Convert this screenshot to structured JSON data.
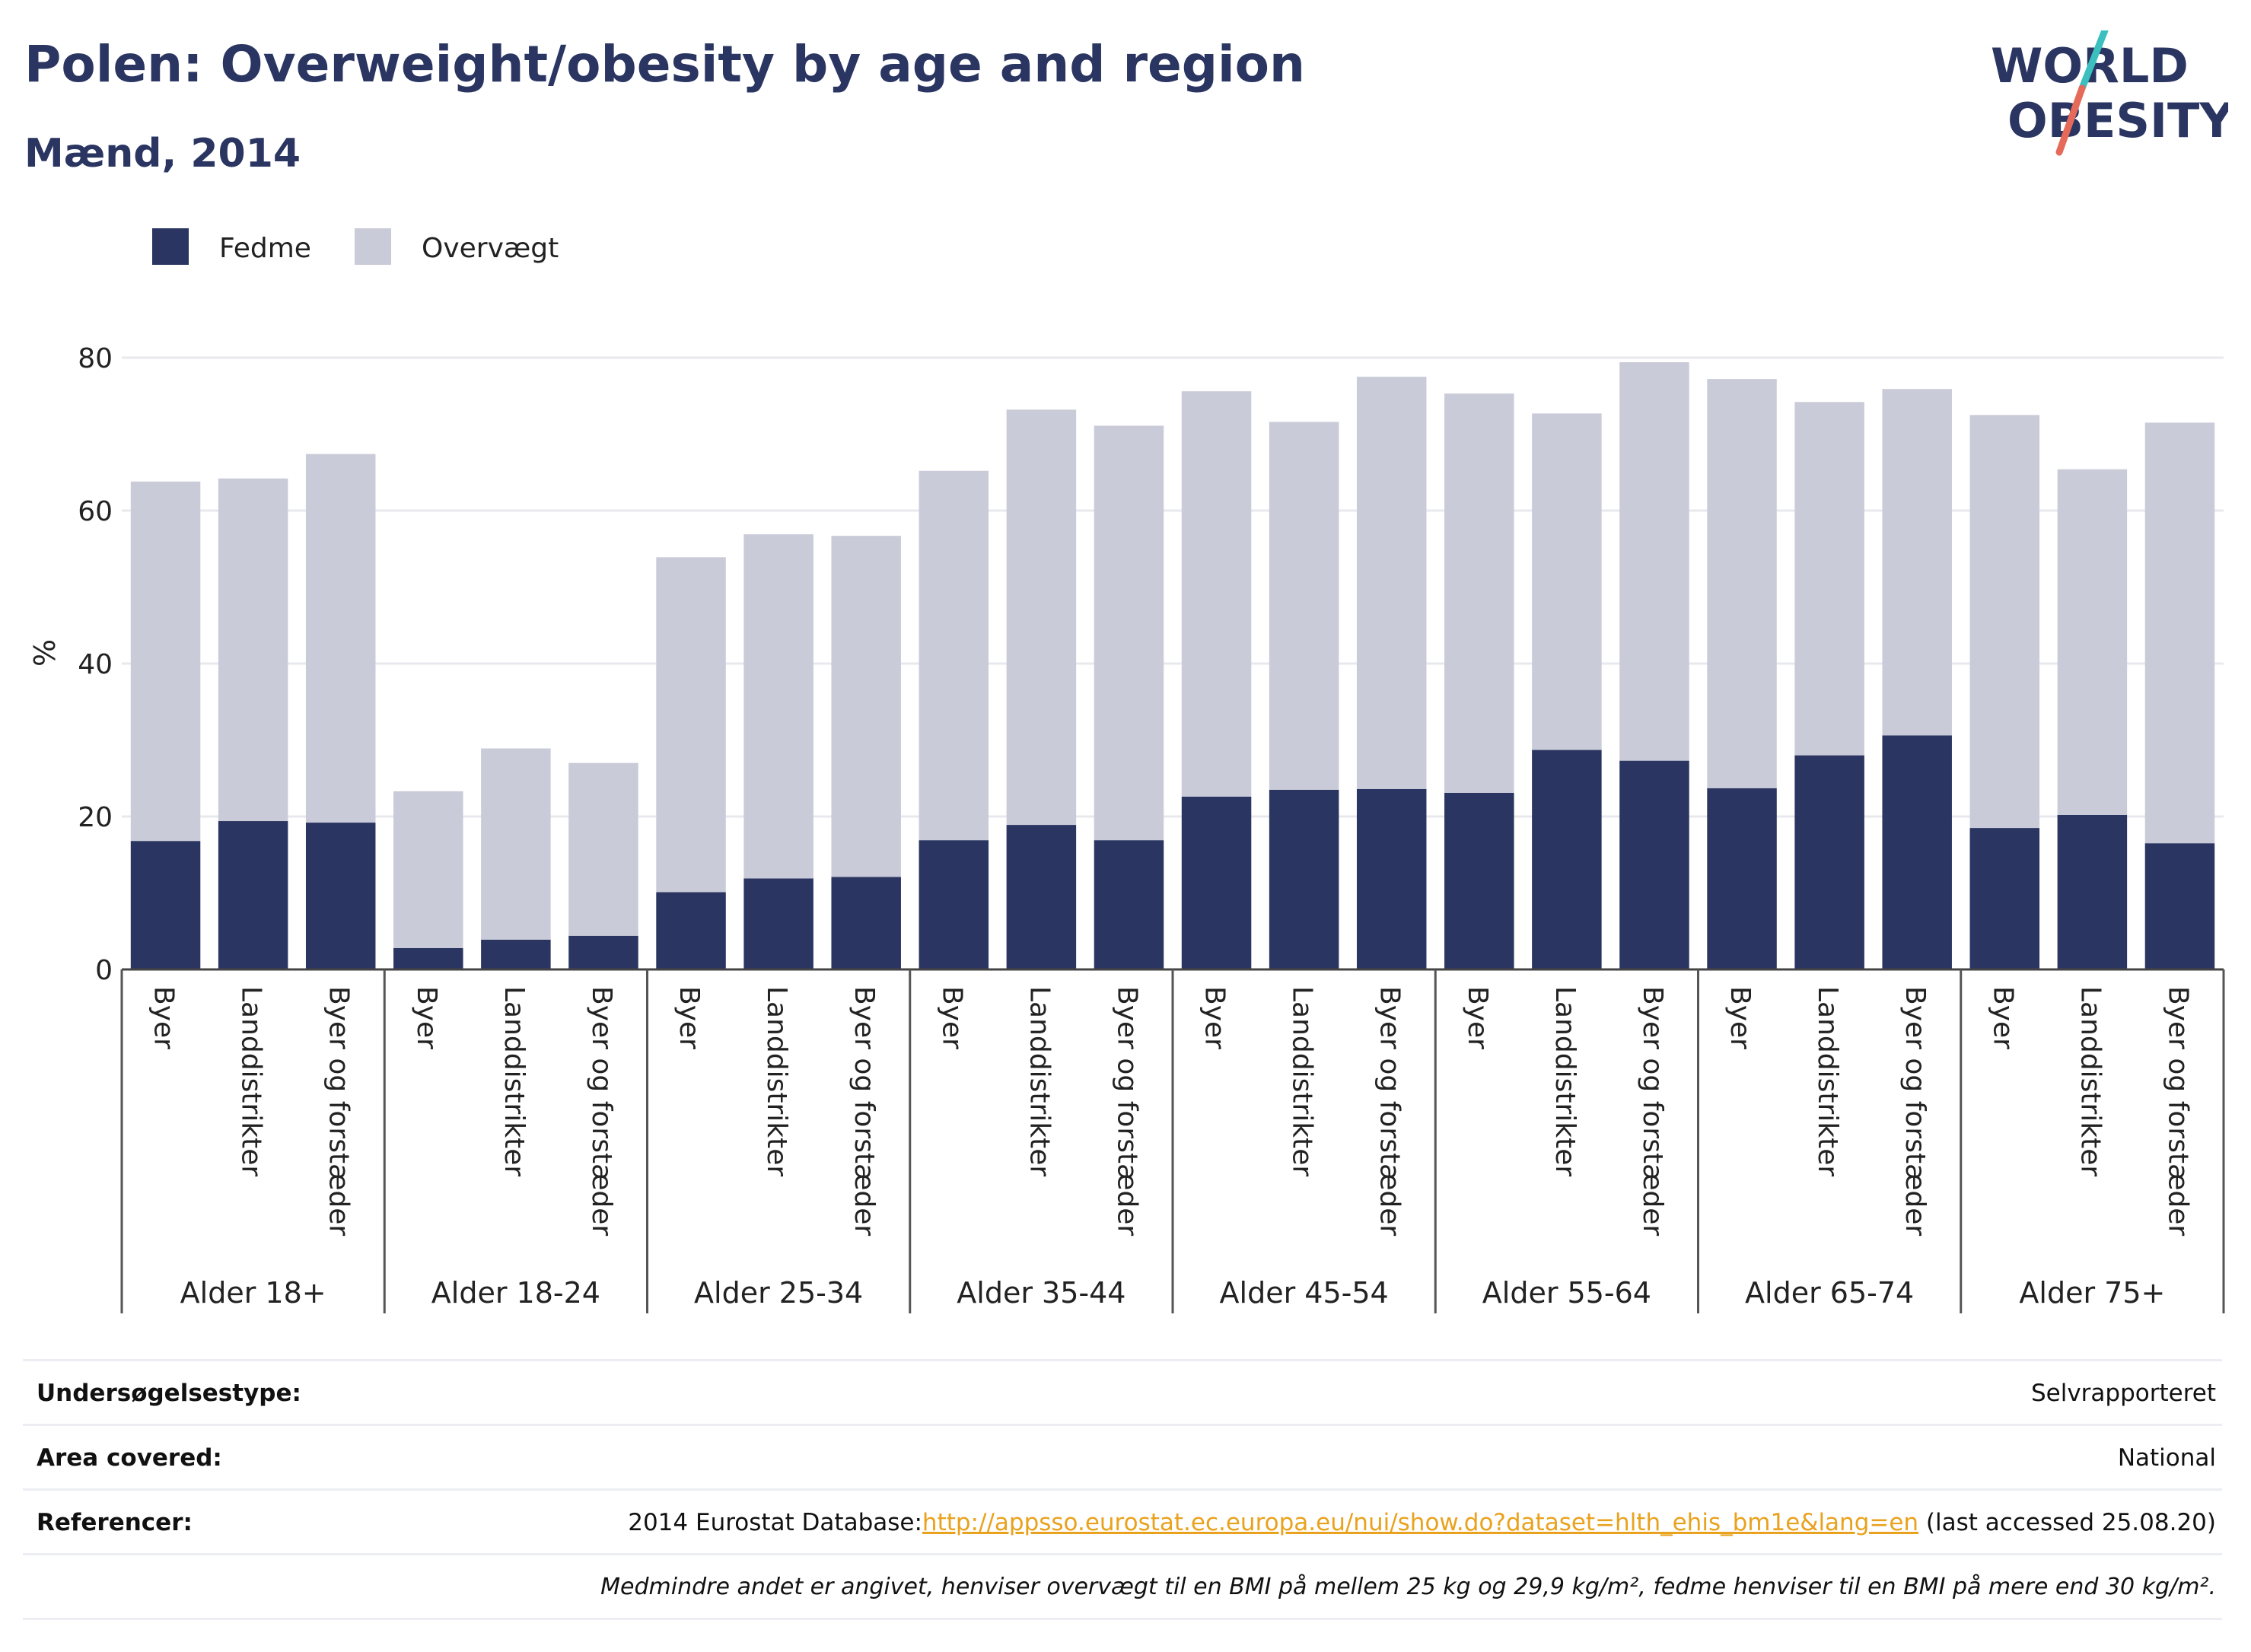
{
  "header": {
    "title": "Polen: Overweight/obesity by age and region",
    "subtitle": "Mænd, 2014"
  },
  "logo": {
    "line1": "WORLD",
    "line2": "OBESITY"
  },
  "colors": {
    "fedme": "#2a3561",
    "overvaegt": "#c9cbd8",
    "accent_teal": "#3bbfbf",
    "accent_coral": "#e66a5a",
    "link": "#e9a21d"
  },
  "chart_data": {
    "type": "bar",
    "stacked": true,
    "ylabel": "%",
    "ylim": [
      0,
      80
    ],
    "yticks": [
      0,
      20,
      40,
      60,
      80
    ],
    "grid": true,
    "legend_position": "top-left",
    "groups": [
      "Alder 18+",
      "Alder 18-24",
      "Alder 25-34",
      "Alder 35-44",
      "Alder 45-54",
      "Alder 55-64",
      "Alder 65-74",
      "Alder 75+"
    ],
    "subcategories": [
      "Byer",
      "Landdistrikter",
      "Byer og forstæder"
    ],
    "series": [
      {
        "name": "Fedme",
        "values": [
          16.8,
          19.4,
          19.2,
          2.8,
          3.9,
          4.4,
          10.1,
          11.9,
          12.1,
          16.9,
          18.9,
          16.9,
          22.6,
          23.5,
          23.6,
          23.1,
          28.7,
          27.3,
          23.7,
          28.0,
          30.6,
          18.5,
          20.2,
          16.5
        ]
      },
      {
        "name": "Overvægt",
        "values": [
          47.0,
          44.8,
          48.2,
          20.5,
          25.0,
          22.6,
          43.8,
          45.0,
          44.6,
          48.3,
          54.3,
          54.2,
          53.0,
          48.1,
          53.9,
          52.2,
          44.0,
          52.1,
          53.5,
          46.2,
          45.3,
          54.0,
          45.2,
          55.0
        ]
      }
    ]
  },
  "info": {
    "survey_type_label": "Undersøgelsestype:",
    "survey_type_value": "Selvrapporteret",
    "area_label": "Area covered:",
    "area_value": "National",
    "references_label": "Referencer:",
    "references_prefix": "2014 Eurostat Database:",
    "references_link": "http://appsso.eurostat.ec.europa.eu/nui/show.do?dataset=hlth_ehis_bm1e&lang=en",
    "references_suffix": " (last accessed 25.08.20)",
    "note": "Medmindre andet er angivet, henviser overvægt til en BMI på mellem 25 kg og 29,9 kg/m², fedme henviser til en BMI på mere end 30 kg/m²."
  }
}
